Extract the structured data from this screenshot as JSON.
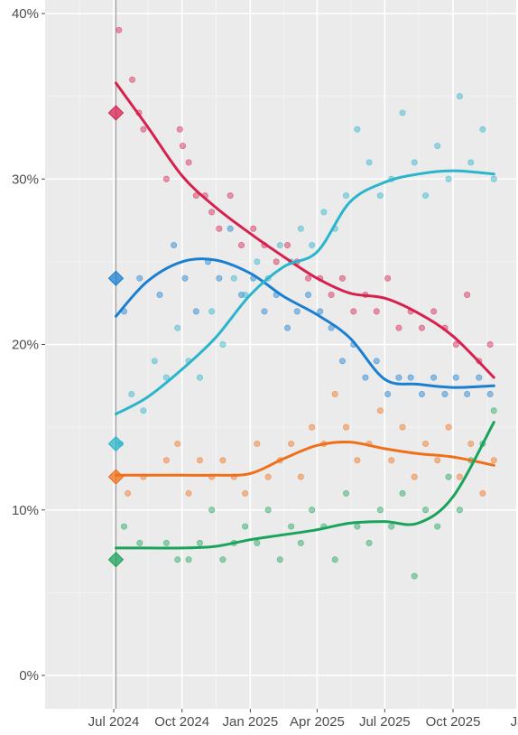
{
  "chart_data": {
    "type": "scatter",
    "title": "",
    "xlabel": "",
    "ylabel": "",
    "y_unit": "%",
    "ylim": [
      0,
      40
    ],
    "xlim": [
      "2024-04-15",
      "2026-01-15"
    ],
    "grid": true,
    "legend": "none",
    "background": "#ebebeb",
    "reference_line": {
      "date": "2024-07-04",
      "color": "#9e9e9e"
    },
    "y_ticks": [
      {
        "value": 0,
        "label": "0%"
      },
      {
        "value": 10,
        "label": "10%"
      },
      {
        "value": 20,
        "label": "20%"
      },
      {
        "value": 30,
        "label": "30%"
      },
      {
        "value": 40,
        "label": "40%"
      }
    ],
    "x_ticks": [
      {
        "date": "2024-07-01",
        "label": "Jul 2024"
      },
      {
        "date": "2024-10-01",
        "label": "Oct 2024"
      },
      {
        "date": "2025-01-01",
        "label": "Jan 2025"
      },
      {
        "date": "2025-04-01",
        "label": "Apr 2025"
      },
      {
        "date": "2025-07-01",
        "label": "Jul 2025"
      },
      {
        "date": "2025-10-01",
        "label": "Oct 2025"
      },
      {
        "date": "2026-01-01",
        "label": "Jan"
      }
    ],
    "series": [
      {
        "color": "#d6214f",
        "election_result": {
          "date": "2024-07-04",
          "value": 34
        },
        "trend": [
          {
            "x": "2024-07-04",
            "y": 35.8
          },
          {
            "x": "2024-08-15",
            "y": 33.2
          },
          {
            "x": "2024-10-01",
            "y": 30.2
          },
          {
            "x": "2024-11-15",
            "y": 28.3
          },
          {
            "x": "2025-01-01",
            "y": 26.7
          },
          {
            "x": "2025-02-15",
            "y": 25.3
          },
          {
            "x": "2025-04-01",
            "y": 24.0
          },
          {
            "x": "2025-05-15",
            "y": 23.1
          },
          {
            "x": "2025-07-01",
            "y": 22.8
          },
          {
            "x": "2025-08-15",
            "y": 21.9
          },
          {
            "x": "2025-10-01",
            "y": 20.5
          },
          {
            "x": "2025-11-25",
            "y": 18.0
          }
        ],
        "polls": [
          {
            "x": "2024-07-08",
            "y": 39
          },
          {
            "x": "2024-07-26",
            "y": 36
          },
          {
            "x": "2024-08-04",
            "y": 34
          },
          {
            "x": "2024-08-10",
            "y": 33
          },
          {
            "x": "2024-09-10",
            "y": 30
          },
          {
            "x": "2024-09-28",
            "y": 33
          },
          {
            "x": "2024-10-02",
            "y": 32
          },
          {
            "x": "2024-10-10",
            "y": 31
          },
          {
            "x": "2024-10-20",
            "y": 29
          },
          {
            "x": "2024-11-01",
            "y": 29
          },
          {
            "x": "2024-11-10",
            "y": 28
          },
          {
            "x": "2024-11-20",
            "y": 27
          },
          {
            "x": "2024-12-05",
            "y": 29
          },
          {
            "x": "2024-12-20",
            "y": 26
          },
          {
            "x": "2025-01-05",
            "y": 27
          },
          {
            "x": "2025-01-20",
            "y": 26
          },
          {
            "x": "2025-02-05",
            "y": 25
          },
          {
            "x": "2025-02-20",
            "y": 26
          },
          {
            "x": "2025-03-05",
            "y": 25
          },
          {
            "x": "2025-03-20",
            "y": 24
          },
          {
            "x": "2025-04-05",
            "y": 24
          },
          {
            "x": "2025-04-20",
            "y": 23
          },
          {
            "x": "2025-05-05",
            "y": 24
          },
          {
            "x": "2025-05-20",
            "y": 22
          },
          {
            "x": "2025-06-05",
            "y": 23
          },
          {
            "x": "2025-06-20",
            "y": 22
          },
          {
            "x": "2025-07-05",
            "y": 24
          },
          {
            "x": "2025-07-20",
            "y": 21
          },
          {
            "x": "2025-08-05",
            "y": 22
          },
          {
            "x": "2025-08-20",
            "y": 21
          },
          {
            "x": "2025-09-05",
            "y": 22
          },
          {
            "x": "2025-09-20",
            "y": 21
          },
          {
            "x": "2025-10-05",
            "y": 20
          },
          {
            "x": "2025-10-20",
            "y": 23
          },
          {
            "x": "2025-11-05",
            "y": 19
          },
          {
            "x": "2025-11-20",
            "y": 20
          }
        ]
      },
      {
        "color": "#1a7fd1",
        "election_result": {
          "date": "2024-07-04",
          "value": 24
        },
        "trend": [
          {
            "x": "2024-07-04",
            "y": 21.7
          },
          {
            "x": "2024-08-15",
            "y": 23.8
          },
          {
            "x": "2024-10-01",
            "y": 25.0
          },
          {
            "x": "2024-11-15",
            "y": 25.1
          },
          {
            "x": "2025-01-01",
            "y": 24.3
          },
          {
            "x": "2025-02-15",
            "y": 22.9
          },
          {
            "x": "2025-04-01",
            "y": 21.8
          },
          {
            "x": "2025-05-15",
            "y": 20.4
          },
          {
            "x": "2025-07-01",
            "y": 17.9
          },
          {
            "x": "2025-08-15",
            "y": 17.6
          },
          {
            "x": "2025-10-01",
            "y": 17.4
          },
          {
            "x": "2025-11-25",
            "y": 17.5
          }
        ],
        "polls": [
          {
            "x": "2024-07-15",
            "y": 22
          },
          {
            "x": "2024-08-05",
            "y": 24
          },
          {
            "x": "2024-09-01",
            "y": 23
          },
          {
            "x": "2024-09-20",
            "y": 26
          },
          {
            "x": "2024-10-05",
            "y": 24
          },
          {
            "x": "2024-10-20",
            "y": 22
          },
          {
            "x": "2024-11-05",
            "y": 25
          },
          {
            "x": "2024-11-20",
            "y": 24
          },
          {
            "x": "2024-12-05",
            "y": 27
          },
          {
            "x": "2024-12-20",
            "y": 23
          },
          {
            "x": "2025-01-05",
            "y": 24
          },
          {
            "x": "2025-01-20",
            "y": 22
          },
          {
            "x": "2025-02-05",
            "y": 23
          },
          {
            "x": "2025-02-20",
            "y": 21
          },
          {
            "x": "2025-03-05",
            "y": 22
          },
          {
            "x": "2025-03-20",
            "y": 23
          },
          {
            "x": "2025-04-05",
            "y": 22
          },
          {
            "x": "2025-04-20",
            "y": 21
          },
          {
            "x": "2025-05-05",
            "y": 19
          },
          {
            "x": "2025-05-20",
            "y": 20
          },
          {
            "x": "2025-06-05",
            "y": 18
          },
          {
            "x": "2025-06-20",
            "y": 19
          },
          {
            "x": "2025-07-05",
            "y": 17
          },
          {
            "x": "2025-07-20",
            "y": 18
          },
          {
            "x": "2025-08-05",
            "y": 18
          },
          {
            "x": "2025-08-20",
            "y": 17
          },
          {
            "x": "2025-09-05",
            "y": 18
          },
          {
            "x": "2025-09-20",
            "y": 17
          },
          {
            "x": "2025-10-05",
            "y": 18
          },
          {
            "x": "2025-10-20",
            "y": 17
          },
          {
            "x": "2025-11-05",
            "y": 18
          },
          {
            "x": "2025-11-20",
            "y": 17
          }
        ]
      },
      {
        "color": "#2bb5cc",
        "election_result": {
          "date": "2024-07-04",
          "value": 14
        },
        "trend": [
          {
            "x": "2024-07-04",
            "y": 15.8
          },
          {
            "x": "2024-08-15",
            "y": 16.8
          },
          {
            "x": "2024-10-01",
            "y": 18.5
          },
          {
            "x": "2024-11-15",
            "y": 20.4
          },
          {
            "x": "2025-01-01",
            "y": 23.0
          },
          {
            "x": "2025-02-15",
            "y": 24.7
          },
          {
            "x": "2025-04-01",
            "y": 25.6
          },
          {
            "x": "2025-05-15",
            "y": 28.6
          },
          {
            "x": "2025-07-01",
            "y": 29.8
          },
          {
            "x": "2025-08-15",
            "y": 30.3
          },
          {
            "x": "2025-10-01",
            "y": 30.5
          },
          {
            "x": "2025-11-25",
            "y": 30.3
          }
        ],
        "polls": [
          {
            "x": "2024-07-10",
            "y": 14
          },
          {
            "x": "2024-07-25",
            "y": 17
          },
          {
            "x": "2024-08-10",
            "y": 16
          },
          {
            "x": "2024-08-25",
            "y": 19
          },
          {
            "x": "2024-09-10",
            "y": 18
          },
          {
            "x": "2024-09-25",
            "y": 21
          },
          {
            "x": "2024-10-10",
            "y": 19
          },
          {
            "x": "2024-10-25",
            "y": 18
          },
          {
            "x": "2024-11-10",
            "y": 22
          },
          {
            "x": "2024-11-25",
            "y": 20
          },
          {
            "x": "2024-12-10",
            "y": 24
          },
          {
            "x": "2024-12-25",
            "y": 23
          },
          {
            "x": "2025-01-10",
            "y": 25
          },
          {
            "x": "2025-01-25",
            "y": 24
          },
          {
            "x": "2025-02-10",
            "y": 26
          },
          {
            "x": "2025-02-25",
            "y": 25
          },
          {
            "x": "2025-03-10",
            "y": 27
          },
          {
            "x": "2025-03-25",
            "y": 26
          },
          {
            "x": "2025-04-10",
            "y": 28
          },
          {
            "x": "2025-04-25",
            "y": 27
          },
          {
            "x": "2025-05-10",
            "y": 29
          },
          {
            "x": "2025-05-25",
            "y": 33
          },
          {
            "x": "2025-06-10",
            "y": 31
          },
          {
            "x": "2025-06-25",
            "y": 29
          },
          {
            "x": "2025-07-10",
            "y": 30
          },
          {
            "x": "2025-07-25",
            "y": 34
          },
          {
            "x": "2025-08-10",
            "y": 31
          },
          {
            "x": "2025-08-25",
            "y": 29
          },
          {
            "x": "2025-09-10",
            "y": 32
          },
          {
            "x": "2025-09-25",
            "y": 30
          },
          {
            "x": "2025-10-10",
            "y": 35
          },
          {
            "x": "2025-10-25",
            "y": 31
          },
          {
            "x": "2025-11-10",
            "y": 33
          },
          {
            "x": "2025-11-25",
            "y": 30
          }
        ]
      },
      {
        "color": "#f0701a",
        "election_result": {
          "date": "2024-07-04",
          "value": 12
        },
        "trend": [
          {
            "x": "2024-07-04",
            "y": 12.1
          },
          {
            "x": "2024-08-15",
            "y": 12.1
          },
          {
            "x": "2024-10-01",
            "y": 12.1
          },
          {
            "x": "2024-11-15",
            "y": 12.1
          },
          {
            "x": "2025-01-01",
            "y": 12.2
          },
          {
            "x": "2025-02-15",
            "y": 13.1
          },
          {
            "x": "2025-04-01",
            "y": 13.9
          },
          {
            "x": "2025-05-15",
            "y": 14.1
          },
          {
            "x": "2025-07-01",
            "y": 13.7
          },
          {
            "x": "2025-08-15",
            "y": 13.4
          },
          {
            "x": "2025-10-01",
            "y": 13.2
          },
          {
            "x": "2025-11-25",
            "y": 12.7
          }
        ],
        "polls": [
          {
            "x": "2024-07-20",
            "y": 11
          },
          {
            "x": "2024-08-10",
            "y": 12
          },
          {
            "x": "2024-09-10",
            "y": 13
          },
          {
            "x": "2024-09-25",
            "y": 14
          },
          {
            "x": "2024-10-10",
            "y": 11
          },
          {
            "x": "2024-10-25",
            "y": 13
          },
          {
            "x": "2024-11-10",
            "y": 12
          },
          {
            "x": "2024-11-25",
            "y": 13
          },
          {
            "x": "2024-12-10",
            "y": 12
          },
          {
            "x": "2024-12-25",
            "y": 11
          },
          {
            "x": "2025-01-10",
            "y": 14
          },
          {
            "x": "2025-01-25",
            "y": 12
          },
          {
            "x": "2025-02-10",
            "y": 13
          },
          {
            "x": "2025-02-25",
            "y": 14
          },
          {
            "x": "2025-03-10",
            "y": 12
          },
          {
            "x": "2025-03-25",
            "y": 15
          },
          {
            "x": "2025-04-10",
            "y": 14
          },
          {
            "x": "2025-04-25",
            "y": 17
          },
          {
            "x": "2025-05-10",
            "y": 15
          },
          {
            "x": "2025-05-25",
            "y": 13
          },
          {
            "x": "2025-06-10",
            "y": 14
          },
          {
            "x": "2025-06-25",
            "y": 16
          },
          {
            "x": "2025-07-10",
            "y": 13
          },
          {
            "x": "2025-07-25",
            "y": 15
          },
          {
            "x": "2025-08-10",
            "y": 12
          },
          {
            "x": "2025-08-25",
            "y": 14
          },
          {
            "x": "2025-09-10",
            "y": 13
          },
          {
            "x": "2025-09-25",
            "y": 15
          },
          {
            "x": "2025-10-10",
            "y": 12
          },
          {
            "x": "2025-10-25",
            "y": 14
          },
          {
            "x": "2025-11-10",
            "y": 11
          },
          {
            "x": "2025-11-25",
            "y": 13
          }
        ]
      },
      {
        "color": "#1aa35a",
        "election_result": {
          "date": "2024-07-04",
          "value": 7
        },
        "trend": [
          {
            "x": "2024-07-04",
            "y": 7.7
          },
          {
            "x": "2024-08-15",
            "y": 7.7
          },
          {
            "x": "2024-10-01",
            "y": 7.7
          },
          {
            "x": "2024-11-15",
            "y": 7.8
          },
          {
            "x": "2025-01-01",
            "y": 8.2
          },
          {
            "x": "2025-02-15",
            "y": 8.5
          },
          {
            "x": "2025-04-01",
            "y": 8.8
          },
          {
            "x": "2025-05-15",
            "y": 9.2
          },
          {
            "x": "2025-07-01",
            "y": 9.3
          },
          {
            "x": "2025-08-15",
            "y": 9.2
          },
          {
            "x": "2025-10-01",
            "y": 10.8
          },
          {
            "x": "2025-11-25",
            "y": 15.3
          }
        ],
        "polls": [
          {
            "x": "2024-07-15",
            "y": 9
          },
          {
            "x": "2024-08-05",
            "y": 8
          },
          {
            "x": "2024-09-10",
            "y": 8
          },
          {
            "x": "2024-09-25",
            "y": 7
          },
          {
            "x": "2024-10-10",
            "y": 7
          },
          {
            "x": "2024-10-25",
            "y": 8
          },
          {
            "x": "2024-11-10",
            "y": 10
          },
          {
            "x": "2024-11-25",
            "y": 7
          },
          {
            "x": "2024-12-10",
            "y": 8
          },
          {
            "x": "2024-12-25",
            "y": 9
          },
          {
            "x": "2025-01-10",
            "y": 8
          },
          {
            "x": "2025-01-25",
            "y": 10
          },
          {
            "x": "2025-02-10",
            "y": 7
          },
          {
            "x": "2025-02-25",
            "y": 9
          },
          {
            "x": "2025-03-10",
            "y": 8
          },
          {
            "x": "2025-03-25",
            "y": 10
          },
          {
            "x": "2025-04-10",
            "y": 9
          },
          {
            "x": "2025-04-25",
            "y": 7
          },
          {
            "x": "2025-05-10",
            "y": 11
          },
          {
            "x": "2025-05-25",
            "y": 9
          },
          {
            "x": "2025-06-10",
            "y": 8
          },
          {
            "x": "2025-06-25",
            "y": 10
          },
          {
            "x": "2025-07-10",
            "y": 9
          },
          {
            "x": "2025-07-25",
            "y": 11
          },
          {
            "x": "2025-08-10",
            "y": 6
          },
          {
            "x": "2025-08-25",
            "y": 10
          },
          {
            "x": "2025-09-10",
            "y": 9
          },
          {
            "x": "2025-09-25",
            "y": 12
          },
          {
            "x": "2025-10-10",
            "y": 10
          },
          {
            "x": "2025-10-25",
            "y": 13
          },
          {
            "x": "2025-11-10",
            "y": 14
          },
          {
            "x": "2025-11-25",
            "y": 16
          }
        ]
      }
    ]
  }
}
